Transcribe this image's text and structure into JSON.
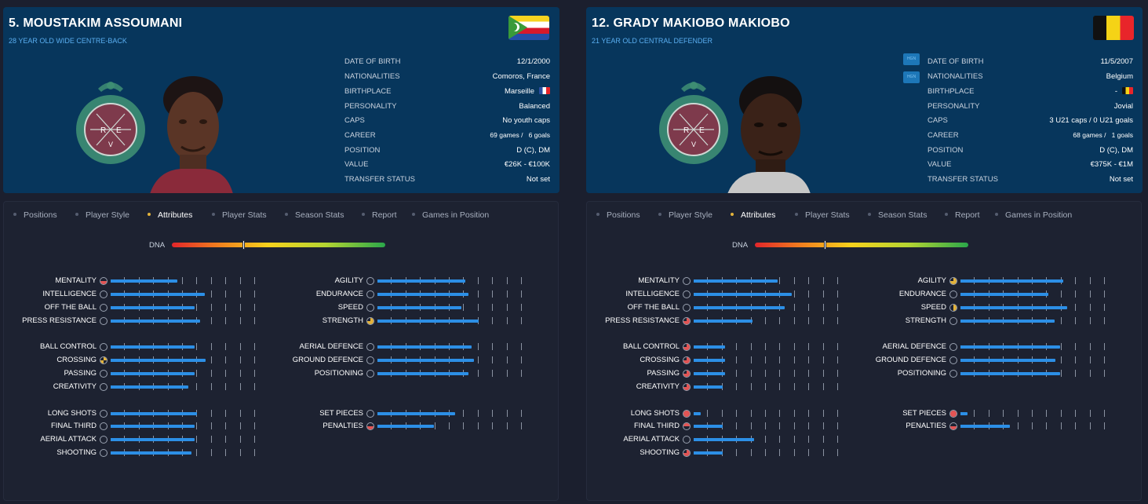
{
  "tabs": [
    {
      "label": "Positions",
      "active": false
    },
    {
      "label": "Player Style",
      "active": false
    },
    {
      "label": "Attributes",
      "active": true
    },
    {
      "label": "Player Stats",
      "active": false
    },
    {
      "label": "Season Stats",
      "active": false
    },
    {
      "label": "Report",
      "active": false
    },
    {
      "label": "Games in Position",
      "active": false
    }
  ],
  "dna_label": "DNA",
  "info_labels": [
    "DATE OF BIRTH",
    "NATIONALITIES",
    "BIRTHPLACE",
    "PERSONALITY",
    "CAPS",
    "CAREER",
    "POSITION",
    "VALUE",
    "TRANSFER STATUS"
  ],
  "colors": {
    "header_bg": "#07365c",
    "panel_bg": "#1d2231",
    "bar_fill": "#2c8fe6",
    "accent_subtitle": "#5aaef0",
    "active_tab_dot": "#e3b33b"
  },
  "players": [
    {
      "name": "5. MOUSTAKIM ASSOUMANI",
      "subtitle": "28 YEAR OLD WIDE CENTRE-BACK",
      "flag_icon": "comoros-flag-icon",
      "hgn_badges": [],
      "info": {
        "date_of_birth": "12/1/2000",
        "nationalities": "Comoros, France",
        "birthplace": "Marseille",
        "birthplace_flag": "fr",
        "personality": "Balanced",
        "caps": "No youth caps",
        "career_games": "69",
        "career_games_unit": "games /",
        "career_goals": "6",
        "career_goals_unit": "goals",
        "position": "D (C), DM",
        "value": "€26K - €100K",
        "transfer_status": "Not set"
      },
      "dna_level": 0.34,
      "attributes": {
        "left": [
          {
            "label": "MENTALITY",
            "level": 0.46,
            "icon_fill": [
              0.0,
              0.0,
              1.0,
              1.0
            ],
            "icon_color": "#e35555"
          },
          {
            "label": "INTELLIGENCE",
            "level": 0.65,
            "icon_fill": [
              0,
              0,
              0,
              0
            ],
            "icon_color": "#e35555"
          },
          {
            "label": "OFF THE BALL",
            "level": 0.58,
            "icon_fill": [
              0,
              0,
              0,
              0
            ],
            "icon_color": "#e35555"
          },
          {
            "label": "PRESS RESISTANCE",
            "level": 0.62,
            "icon_fill": [
              0,
              0,
              0,
              0
            ],
            "icon_color": "#e35555"
          },
          {
            "label": "BALL CONTROL",
            "level": 0.58,
            "icon_fill": [
              0,
              0,
              0,
              0
            ],
            "icon_color": "#e35555"
          },
          {
            "label": "CROSSING",
            "level": 0.66,
            "icon_fill": [
              0,
              1,
              0,
              1
            ],
            "icon_color": "#e3b33b"
          },
          {
            "label": "PASSING",
            "level": 0.58,
            "icon_fill": [
              0,
              0,
              0,
              0
            ],
            "icon_color": "#e35555"
          },
          {
            "label": "CREATIVITY",
            "level": 0.54,
            "icon_fill": [
              0,
              0,
              0,
              0
            ],
            "icon_color": "#e35555"
          },
          {
            "label": "LONG SHOTS",
            "level": 0.6,
            "icon_fill": [
              0,
              0,
              0,
              0
            ],
            "icon_color": "#e35555"
          },
          {
            "label": "FINAL THIRD",
            "level": 0.58,
            "icon_fill": [
              0,
              0,
              0,
              0
            ],
            "icon_color": "#e35555"
          },
          {
            "label": "AERIAL ATTACK",
            "level": 0.58,
            "icon_fill": [
              0,
              0,
              0,
              0
            ],
            "icon_color": "#e35555"
          },
          {
            "label": "SHOOTING",
            "level": 0.56,
            "icon_fill": [
              0,
              0,
              0,
              0
            ],
            "icon_color": "#e35555"
          }
        ],
        "right": [
          {
            "label": "AGILITY",
            "level": 0.61,
            "icon_fill": [
              0,
              0,
              0,
              0
            ],
            "icon_color": "#e35555"
          },
          {
            "label": "ENDURANCE",
            "level": 0.63,
            "icon_fill": [
              0,
              0,
              0,
              0
            ],
            "icon_color": "#e35555"
          },
          {
            "label": "SPEED",
            "level": 0.58,
            "icon_fill": [
              0,
              0,
              0,
              0
            ],
            "icon_color": "#e35555"
          },
          {
            "label": "STRENGTH",
            "level": 0.7,
            "icon_fill": [
              0,
              1,
              1,
              1
            ],
            "icon_color": "#e3b33b"
          },
          {
            "label": "AERIAL DEFENCE",
            "level": 0.65,
            "icon_fill": [
              0,
              0,
              0,
              0
            ],
            "icon_color": "#e35555"
          },
          {
            "label": "GROUND DEFENCE",
            "level": 0.67,
            "icon_fill": [
              0,
              0,
              0,
              0
            ],
            "icon_color": "#e35555"
          },
          {
            "label": "POSITIONING",
            "level": 0.63,
            "icon_fill": [
              0,
              0,
              0,
              0
            ],
            "icon_color": "#e35555"
          },
          {
            "label": "SET PIECES",
            "level": 0.54,
            "icon_fill": [
              0,
              0,
              0,
              0
            ],
            "icon_color": "#e35555"
          },
          {
            "label": "PENALTIES",
            "level": 0.39,
            "icon_fill": [
              0,
              0,
              1,
              1
            ],
            "icon_color": "#e35555"
          }
        ]
      }
    },
    {
      "name": "12. GRADY MAKIOBO MAKIOBO",
      "subtitle": "21 YEAR OLD CENTRAL DEFENDER",
      "flag_icon": "belgium-flag-icon",
      "hgn_badges": [
        "HGN",
        "HGN"
      ],
      "info": {
        "date_of_birth": "11/5/2007",
        "nationalities": "Belgium",
        "birthplace": "-",
        "birthplace_flag": "be",
        "personality": "Jovial",
        "caps": "3 U21 caps / 0 U21 goals",
        "career_games": "68",
        "career_games_unit": "games /",
        "career_goals": "1",
        "career_goals_unit": "goals",
        "position": "D (C), DM",
        "value": "€375K - €1M",
        "transfer_status": "Not set"
      },
      "dna_level": 0.33,
      "attributes": {
        "left": [
          {
            "label": "MENTALITY",
            "level": 0.58,
            "icon_fill": [
              0,
              0,
              0,
              0
            ],
            "icon_color": "#e35555"
          },
          {
            "label": "INTELLIGENCE",
            "level": 0.68,
            "icon_fill": [
              0,
              0,
              0,
              0
            ],
            "icon_color": "#e35555"
          },
          {
            "label": "OFF THE BALL",
            "level": 0.63,
            "icon_fill": [
              0,
              0,
              0,
              0
            ],
            "icon_color": "#e35555"
          },
          {
            "label": "PRESS RESISTANCE",
            "level": 0.41,
            "icon_fill": [
              0,
              1,
              1,
              1
            ],
            "icon_color": "#e35555"
          },
          {
            "label": "BALL CONTROL",
            "level": 0.22,
            "icon_fill": [
              0,
              1,
              1,
              1
            ],
            "icon_color": "#e35555"
          },
          {
            "label": "CROSSING",
            "level": 0.22,
            "icon_fill": [
              0,
              1,
              1,
              1
            ],
            "icon_color": "#e35555"
          },
          {
            "label": "PASSING",
            "level": 0.22,
            "icon_fill": [
              0,
              1,
              1,
              1
            ],
            "icon_color": "#e35555"
          },
          {
            "label": "CREATIVITY",
            "level": 0.2,
            "icon_fill": [
              0,
              1,
              1,
              1
            ],
            "icon_color": "#e35555"
          },
          {
            "label": "LONG SHOTS",
            "level": 0.05,
            "icon_fill": [
              1,
              1,
              1,
              1
            ],
            "icon_color": "#e35555"
          },
          {
            "label": "FINAL THIRD",
            "level": 0.2,
            "icon_fill": [
              1,
              1,
              0,
              0
            ],
            "icon_color": "#e35555"
          },
          {
            "label": "AERIAL ATTACK",
            "level": 0.42,
            "icon_fill": [
              0,
              0,
              0,
              0
            ],
            "icon_color": "#e35555"
          },
          {
            "label": "SHOOTING",
            "level": 0.2,
            "icon_fill": [
              0,
              1,
              1,
              1
            ],
            "icon_color": "#e35555"
          }
        ],
        "right": [
          {
            "label": "AGILITY",
            "level": 0.71,
            "icon_fill": [
              0,
              1,
              1,
              1
            ],
            "icon_color": "#e3b33b"
          },
          {
            "label": "ENDURANCE",
            "level": 0.61,
            "icon_fill": [
              0,
              0,
              0,
              0
            ],
            "icon_color": "#e35555"
          },
          {
            "label": "SPEED",
            "level": 0.74,
            "icon_fill": [
              0,
              1,
              1,
              0
            ],
            "icon_color": "#e3b33b"
          },
          {
            "label": "STRENGTH",
            "level": 0.65,
            "icon_fill": [
              0,
              0,
              0,
              0
            ],
            "icon_color": "#e35555"
          },
          {
            "label": "AERIAL DEFENCE",
            "level": 0.69,
            "icon_fill": [
              0,
              0,
              0,
              0
            ],
            "icon_color": "#e35555"
          },
          {
            "label": "GROUND DEFENCE",
            "level": 0.66,
            "icon_fill": [
              0,
              0,
              0,
              0
            ],
            "icon_color": "#e35555"
          },
          {
            "label": "POSITIONING",
            "level": 0.69,
            "icon_fill": [
              0,
              0,
              0,
              0
            ],
            "icon_color": "#e35555"
          },
          {
            "label": "SET PIECES",
            "level": 0.05,
            "icon_fill": [
              1,
              1,
              1,
              1
            ],
            "icon_color": "#e35555"
          },
          {
            "label": "PENALTIES",
            "level": 0.34,
            "icon_fill": [
              0,
              0,
              1,
              1
            ],
            "icon_color": "#e35555"
          }
        ]
      }
    }
  ]
}
